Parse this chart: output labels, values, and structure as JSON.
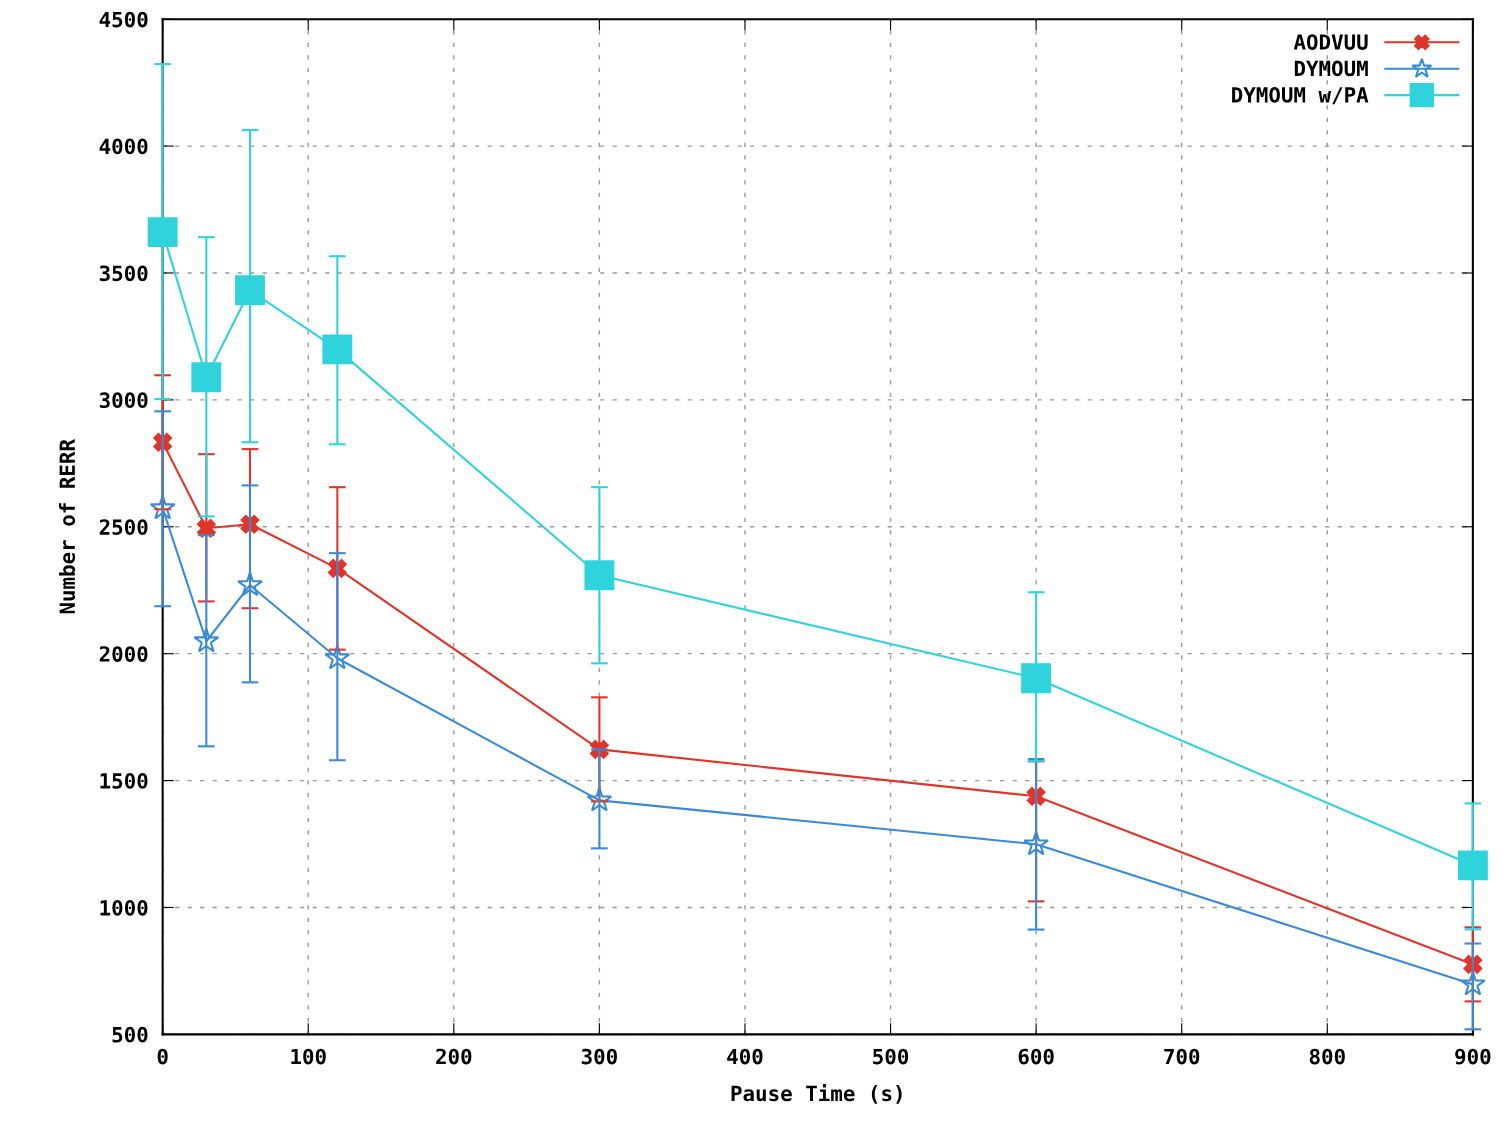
{
  "chart_data": {
    "type": "line",
    "xlabel": "Pause Time (s)",
    "ylabel": "Number of RERR",
    "x": [
      0,
      30,
      60,
      120,
      300,
      600,
      900
    ],
    "xlim": [
      0,
      900
    ],
    "xticks": [
      0,
      100,
      200,
      300,
      400,
      500,
      600,
      700,
      800,
      900
    ],
    "ylim": [
      500,
      4500
    ],
    "yticks": [
      500,
      1000,
      1500,
      2000,
      2500,
      3000,
      3500,
      4000,
      4500
    ],
    "grid": true,
    "legend": "top right",
    "line_style": "solid",
    "series": [
      {
        "name": "AODVUU",
        "color": "#e0352b",
        "marker": "cross",
        "values": [
          2833,
          2494,
          2510,
          2336,
          1623,
          1438,
          776
        ],
        "errors": [
          [
            2569,
            3097
          ],
          [
            2206,
            2786
          ],
          [
            2179,
            2806
          ],
          [
            2016,
            2656
          ],
          [
            1418,
            1828
          ],
          [
            1024,
            1576
          ],
          [
            630,
            922
          ]
        ]
      },
      {
        "name": "DYMOUM",
        "color": "#3a8ad6",
        "marker": "star",
        "values": [
          2573,
          2049,
          2270,
          1982,
          1422,
          1249,
          697
        ],
        "errors": [
          [
            2187,
            2955
          ],
          [
            1635,
            2467
          ],
          [
            1887,
            2663
          ],
          [
            1580,
            2396
          ],
          [
            1233,
            1623
          ],
          [
            913,
            1585
          ],
          [
            520,
            858
          ]
        ]
      },
      {
        "name": "DYMOUM w/PA",
        "color": "#2fd3dc",
        "marker": "square",
        "values": [
          3661,
          3089,
          3432,
          3199,
          2309,
          1903,
          1166
        ],
        "errors": [
          [
            3003,
            4323
          ],
          [
            2541,
            3641
          ],
          [
            2833,
            4063
          ],
          [
            2825,
            3566
          ],
          [
            1962,
            2656
          ],
          [
            1576,
            2242
          ],
          [
            914,
            1410
          ]
        ]
      }
    ]
  }
}
